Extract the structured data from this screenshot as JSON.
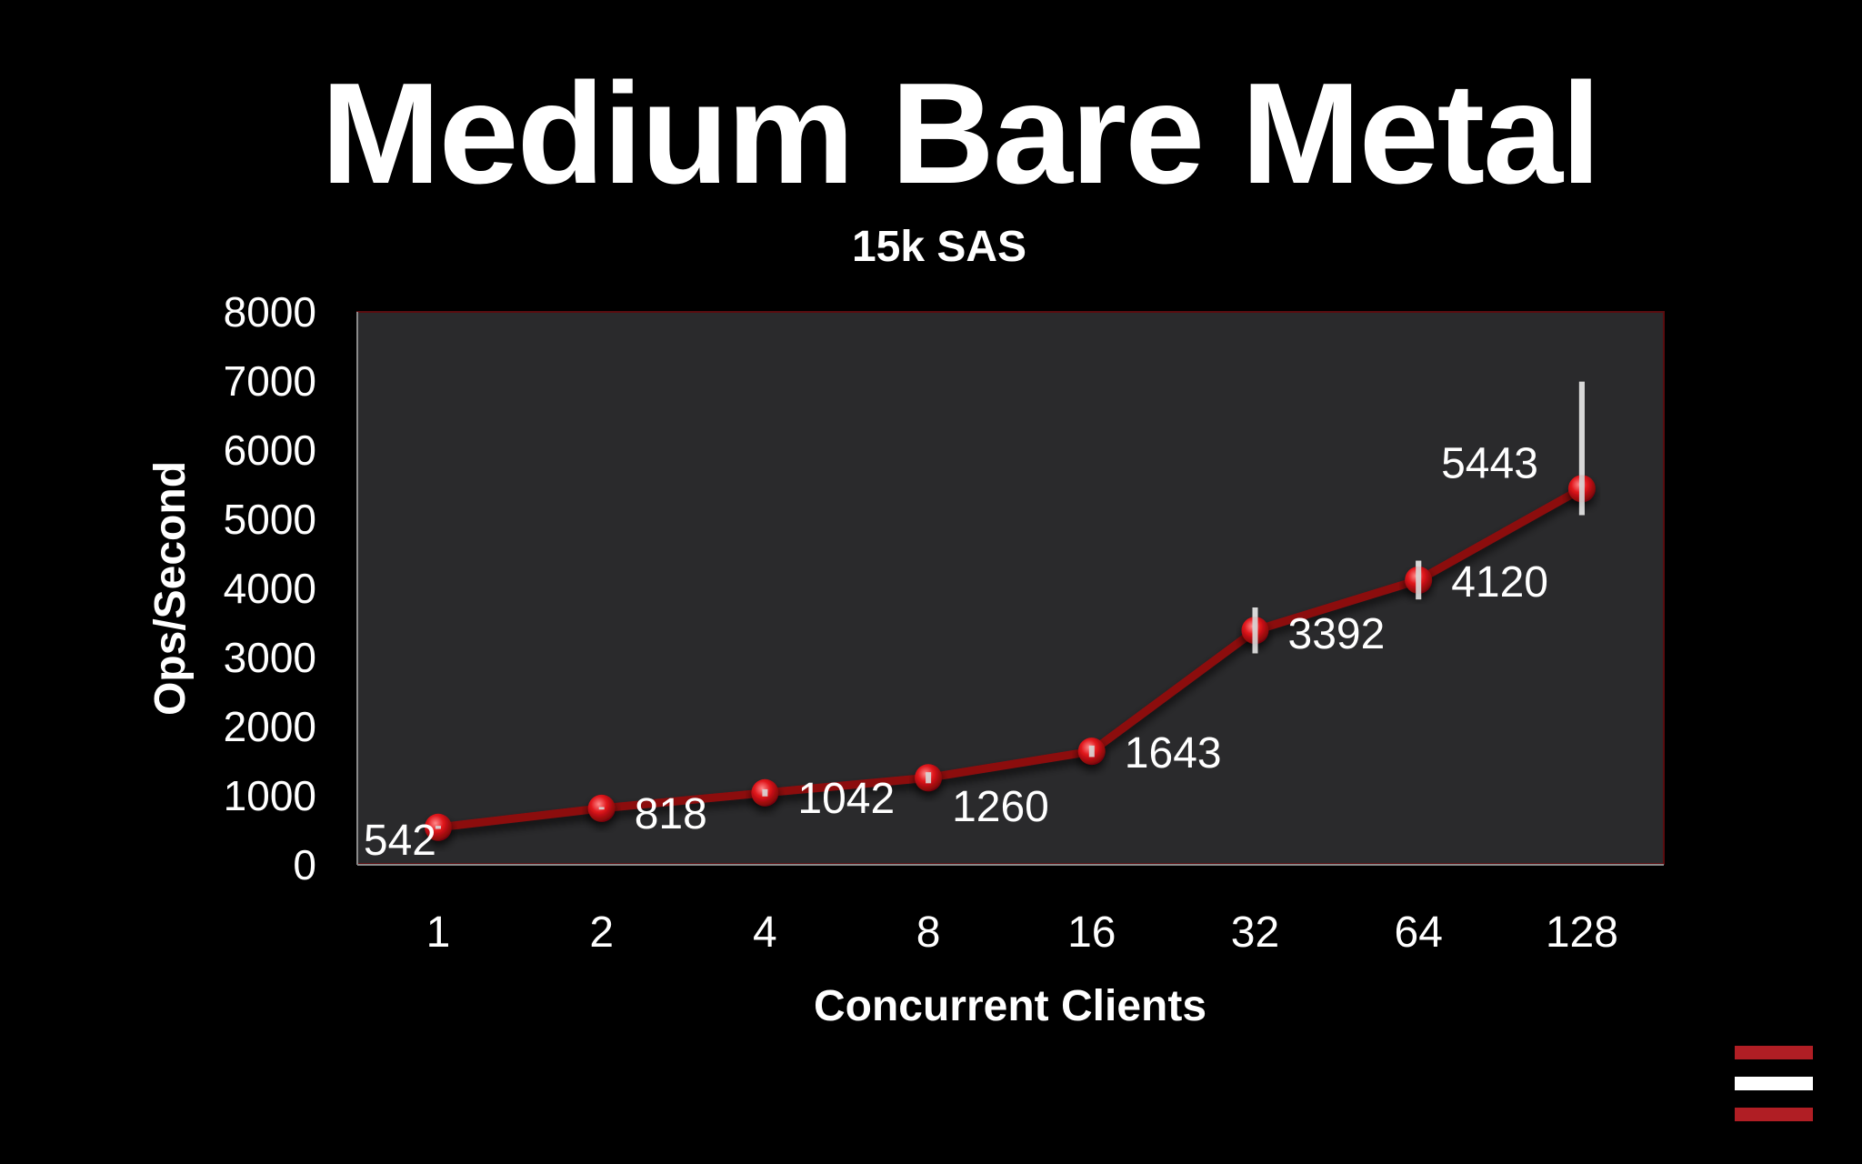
{
  "chart_data": {
    "type": "line",
    "title": "Medium Bare Metal",
    "subtitle": "15k SAS",
    "xlabel": "Concurrent Clients",
    "ylabel": "Ops/Second",
    "categories": [
      "1",
      "2",
      "4",
      "8",
      "16",
      "32",
      "64",
      "128"
    ],
    "series": [
      {
        "values": [
          542,
          818,
          1042,
          1260,
          1643,
          3392,
          4120,
          5443
        ],
        "error_ranges": [
          [
            520,
            564
          ],
          [
            800,
            836
          ],
          [
            990,
            1094
          ],
          [
            1180,
            1340
          ],
          [
            1560,
            1726
          ],
          [
            3060,
            3724
          ],
          [
            3840,
            4400
          ],
          [
            5060,
            6990
          ]
        ],
        "color": "#e0151b"
      }
    ],
    "data_labels": [
      "542",
      "818",
      "1042",
      "1260",
      "1643",
      "3392",
      "4120",
      "5443"
    ],
    "yticks": [
      "0",
      "1000",
      "2000",
      "3000",
      "4000",
      "5000",
      "6000",
      "7000",
      "8000"
    ],
    "ylim": [
      0,
      8000
    ],
    "grid": false,
    "legend": "none",
    "colors": {
      "background": "#000000",
      "plot_area": "#2a2a2c",
      "line": "#8c0a0f",
      "marker": "#e0151b",
      "error_bar": "#d8d8d8"
    }
  },
  "logo": {
    "name": "stacked-bars-logo",
    "colors": [
      "#b01e24",
      "#ffffff",
      "#b01e24"
    ]
  }
}
